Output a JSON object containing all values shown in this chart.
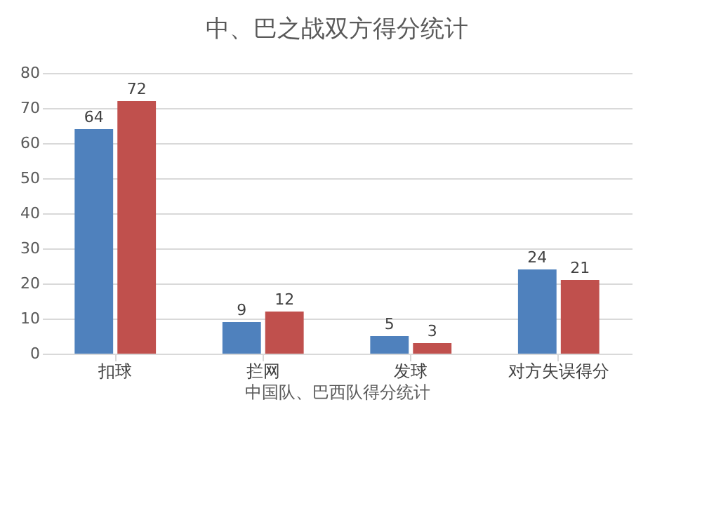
{
  "chart_data": {
    "type": "bar",
    "title": "中、巴之战双方得分统计",
    "xlabel": "中国队、巴西队得分统计",
    "categories": [
      "扣球",
      "拦网",
      "发球",
      "对方失误得分"
    ],
    "series": [
      {
        "color": "#4f81bd",
        "values": [
          64,
          9,
          5,
          24
        ]
      },
      {
        "color": "#c0504d",
        "values": [
          72,
          12,
          3,
          21
        ]
      }
    ],
    "ylim": [
      0,
      80
    ],
    "yticks": [
      0,
      10,
      20,
      30,
      40,
      50,
      60,
      70,
      80
    ],
    "grid": "y",
    "data_labels": true
  }
}
